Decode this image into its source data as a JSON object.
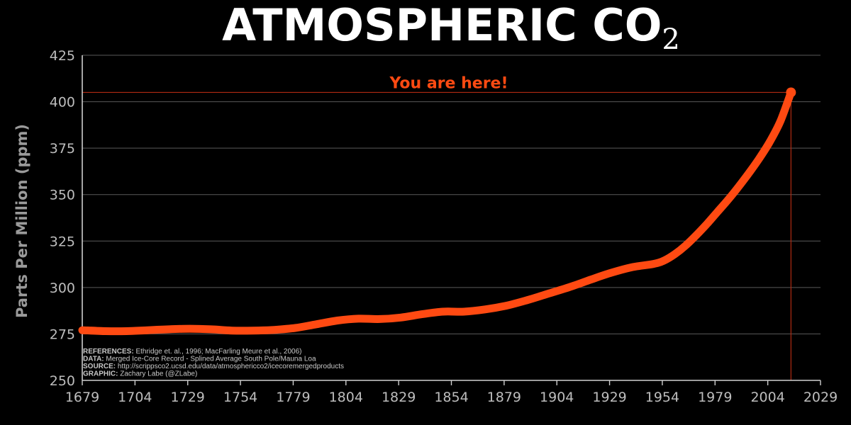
{
  "chart_data": {
    "type": "line",
    "title": "ATMOSPHERIC CO",
    "title_subscript": "2",
    "ylabel": "Parts Per Million (ppm)",
    "xlabel": "",
    "xlim": [
      1679,
      2029
    ],
    "ylim": [
      250,
      425
    ],
    "x_ticks": [
      1679,
      1704,
      1729,
      1754,
      1779,
      1804,
      1829,
      1854,
      1879,
      1904,
      1929,
      1954,
      1979,
      2004,
      2029
    ],
    "y_ticks": [
      250,
      275,
      300,
      325,
      350,
      375,
      400,
      425
    ],
    "highlight_y_tick": 400,
    "grid": "horizontal",
    "series": [
      {
        "x": [
          1679,
          1690,
          1700,
          1710,
          1720,
          1730,
          1740,
          1750,
          1760,
          1770,
          1780,
          1790,
          1800,
          1810,
          1820,
          1830,
          1840,
          1850,
          1860,
          1870,
          1880,
          1890,
          1900,
          1910,
          1920,
          1930,
          1940,
          1950,
          1955,
          1960,
          1965,
          1970,
          1975,
          1980,
          1985,
          1990,
          1995,
          2000,
          2005,
          2010,
          2015
        ],
        "values": [
          277,
          276.5,
          276.5,
          277,
          277.5,
          277.8,
          277.5,
          276.8,
          276.8,
          277.2,
          278.2,
          280.2,
          282.2,
          283.2,
          283.0,
          283.8,
          285.6,
          287.0,
          287.0,
          288.2,
          290.2,
          293.2,
          296.7,
          300.2,
          304.2,
          308.0,
          311.0,
          312.7,
          314.6,
          318.0,
          322.5,
          328.0,
          334.0,
          340.5,
          347.0,
          354.0,
          361.5,
          369.5,
          378.5,
          389.5,
          405.0
        ]
      }
    ],
    "annotation": {
      "text": "You are here!",
      "x": 2015,
      "y": 405
    },
    "colors": {
      "background": "#000000",
      "line": "#ff4a12",
      "annotation": "#ff4a12",
      "grid": "#5a5a5a",
      "axis": "#cfcfcf",
      "ref_line": "#b02a12"
    },
    "references": [
      {
        "key": "REFERENCES:",
        "text": "Ethridge et. al., 1996; MacFarling Meure et al., 2006)"
      },
      {
        "key": "DATA:",
        "text": "Merged Ice-Core Record - Splined Average South Pole/Mauna Loa"
      },
      {
        "key": "SOURCE:",
        "text": "http://scrippsco2.ucsd.edu/data/atmosphericco2/icecoremergedproducts"
      },
      {
        "key": "GRAPHIC:",
        "text": "Zachary Labe (@ZLabe)"
      }
    ]
  }
}
